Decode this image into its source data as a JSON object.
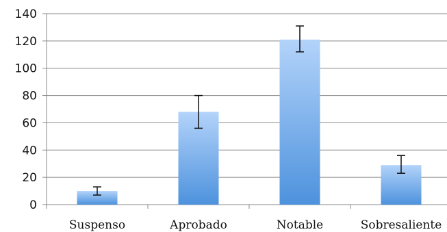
{
  "chart_data": {
    "type": "bar",
    "categories": [
      "Suspenso",
      "Aprobado",
      "Notable",
      "Sobresaliente"
    ],
    "values": [
      10,
      68,
      121,
      29
    ],
    "error_bars": [
      {
        "low": 7,
        "high": 13
      },
      {
        "low": 56,
        "high": 80
      },
      {
        "low": 112,
        "high": 131
      },
      {
        "low": 23,
        "high": 36
      }
    ],
    "ylim": [
      0,
      140
    ],
    "yticks": [
      0,
      20,
      40,
      60,
      80,
      100,
      120,
      140
    ],
    "grid": true,
    "bar_color_top": "#b3d3fa",
    "bar_color_bottom": "#4d92dd",
    "grid_color": "#888888",
    "errorbar_color": "#111111"
  }
}
